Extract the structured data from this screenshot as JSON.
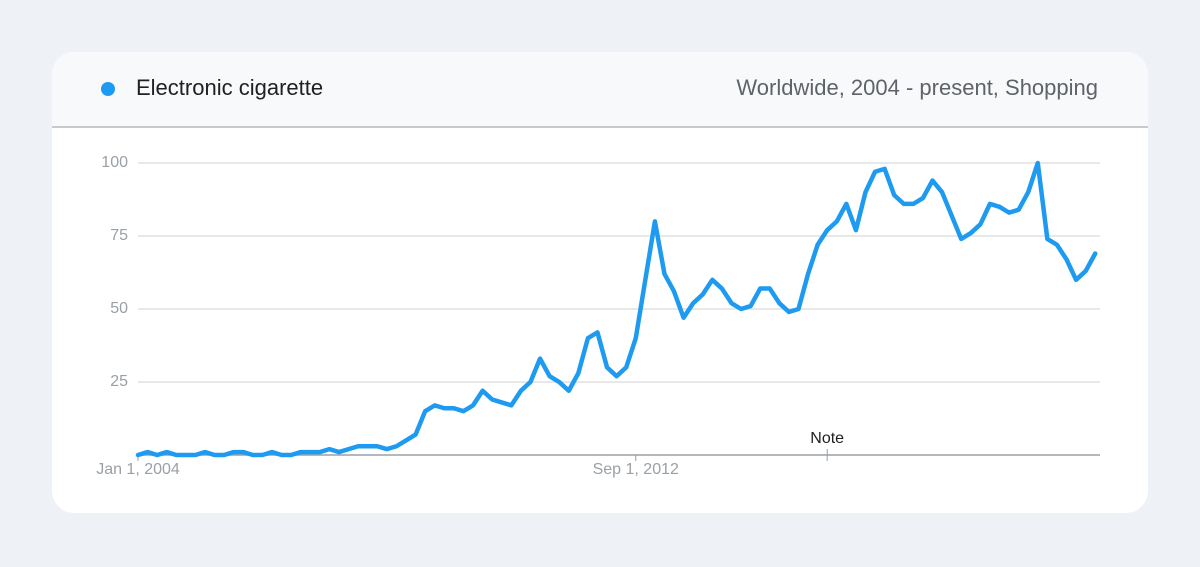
{
  "chart_data": {
    "type": "line",
    "subtitle": "Worldwide, 2004 - present, Shopping",
    "x": [
      "2004-01-01",
      "2004-03-01",
      "2004-05-01",
      "2004-07-01",
      "2004-09-01",
      "2004-11-01",
      "2005-01-01",
      "2005-03-01",
      "2005-05-01",
      "2005-07-01",
      "2005-09-01",
      "2005-11-01",
      "2006-01-01",
      "2006-03-01",
      "2006-05-01",
      "2006-07-01",
      "2006-09-01",
      "2006-11-01",
      "2007-01-01",
      "2007-03-01",
      "2007-05-01",
      "2007-07-01",
      "2007-09-01",
      "2007-11-01",
      "2008-01-01",
      "2008-03-01",
      "2008-05-01",
      "2008-07-01",
      "2008-09-01",
      "2008-11-01",
      "2009-01-01",
      "2009-03-01",
      "2009-05-01",
      "2009-07-01",
      "2009-09-01",
      "2009-11-01",
      "2010-01-01",
      "2010-03-01",
      "2010-05-01",
      "2010-07-01",
      "2010-09-01",
      "2010-11-01",
      "2011-01-01",
      "2011-03-01",
      "2011-05-01",
      "2011-07-01",
      "2011-09-01",
      "2011-11-01",
      "2012-01-01",
      "2012-03-01",
      "2012-05-01",
      "2012-07-01",
      "2012-09-01",
      "2012-11-01",
      "2013-01-01",
      "2013-03-01",
      "2013-05-01",
      "2013-07-01",
      "2013-09-01",
      "2013-11-01",
      "2014-01-01",
      "2014-03-01",
      "2014-05-01",
      "2014-07-01",
      "2014-09-01",
      "2014-11-01",
      "2015-01-01",
      "2015-03-01",
      "2015-05-01",
      "2015-07-01",
      "2015-09-01",
      "2015-11-01",
      "2016-01-01",
      "2016-03-01",
      "2016-05-01",
      "2016-07-01",
      "2016-09-01",
      "2016-11-01",
      "2017-01-01",
      "2017-03-01",
      "2017-05-01",
      "2017-07-01",
      "2017-09-01",
      "2017-11-01",
      "2018-01-01",
      "2018-03-01",
      "2018-05-01",
      "2018-07-01",
      "2018-09-01",
      "2018-11-01",
      "2019-01-01",
      "2019-03-01",
      "2019-05-01",
      "2019-07-01",
      "2019-09-01",
      "2019-11-01",
      "2020-01-01",
      "2020-03-01",
      "2020-05-01",
      "2020-07-01",
      "2020-09-01"
    ],
    "series": [
      {
        "name": "Electronic cigarette",
        "color": "#1e9bf0",
        "values": [
          0,
          1,
          0,
          1,
          0,
          0,
          0,
          1,
          0,
          0,
          1,
          1,
          0,
          0,
          1,
          0,
          0,
          1,
          1,
          1,
          2,
          1,
          2,
          3,
          3,
          3,
          2,
          3,
          5,
          7,
          15,
          17,
          16,
          16,
          15,
          17,
          22,
          19,
          18,
          17,
          22,
          25,
          33,
          27,
          25,
          22,
          28,
          40,
          42,
          30,
          27,
          30,
          40,
          60,
          80,
          62,
          56,
          47,
          52,
          55,
          60,
          57,
          52,
          50,
          51,
          57,
          57,
          52,
          49,
          50,
          62,
          72,
          77,
          80,
          86,
          77,
          90,
          97,
          98,
          89,
          86,
          86,
          88,
          94,
          90,
          82,
          74,
          76,
          79,
          86,
          85,
          83,
          84,
          90,
          100,
          74,
          72,
          67,
          60,
          63,
          69
        ]
      }
    ],
    "xlim": [
      "2004-01-01",
      "2020-10-01"
    ],
    "xticks": [
      {
        "value": "2004-01-01",
        "label": "Jan 1, 2004"
      },
      {
        "value": "2012-09-01",
        "label": "Sep 1, 2012"
      }
    ],
    "ylim": [
      0,
      100
    ],
    "yticks": [
      25,
      50,
      75,
      100
    ],
    "grid": true,
    "annotations": [
      {
        "x": "2016-01-01",
        "text": "Note"
      }
    ]
  }
}
